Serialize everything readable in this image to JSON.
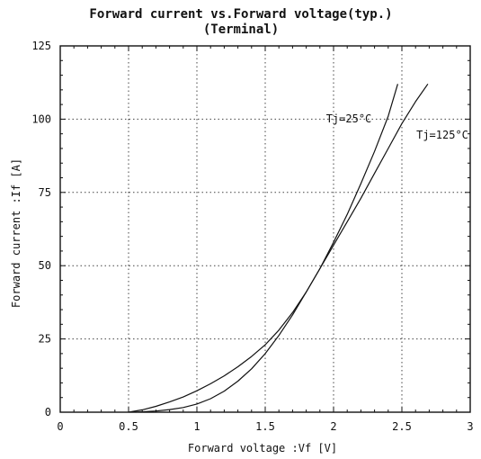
{
  "chart_data": {
    "type": "line",
    "title": "Forward current vs.Forward voltage(typ.)",
    "subtitle": "(Terminal)",
    "xlabel": "Forward voltage :Vf [V]",
    "ylabel": "Forward current :If [A]",
    "xlim": [
      0,
      3
    ],
    "ylim": [
      0,
      125
    ],
    "x_ticks": [
      0,
      0.5,
      1,
      1.5,
      2,
      2.5,
      3
    ],
    "y_ticks": [
      0,
      25,
      50,
      75,
      100,
      125
    ],
    "x_tick_labels": [
      "0",
      "0.5",
      "1",
      "1.5",
      "2",
      "2.5",
      "3"
    ],
    "y_tick_labels": [
      "0",
      "25",
      "50",
      "75",
      "100",
      "125"
    ],
    "grid": true,
    "series": [
      {
        "name": "Tj=25°C",
        "x": [
          0.5,
          0.6,
          0.7,
          0.8,
          0.9,
          1.0,
          1.1,
          1.2,
          1.3,
          1.4,
          1.5,
          1.6,
          1.7,
          1.8,
          1.9,
          2.0,
          2.1,
          2.2,
          2.3,
          2.4,
          2.47
        ],
        "y": [
          0,
          0.8,
          2.0,
          3.5,
          5.2,
          7.3,
          9.7,
          12.4,
          15.5,
          19.0,
          23.0,
          28.0,
          34.0,
          41.0,
          49.0,
          58.0,
          67.5,
          78.0,
          89.0,
          101.0,
          112.0
        ]
      },
      {
        "name": "Tj=125°C",
        "x": [
          0.55,
          0.7,
          0.8,
          0.9,
          1.0,
          1.1,
          1.2,
          1.3,
          1.4,
          1.5,
          1.6,
          1.7,
          1.8,
          1.9,
          2.0,
          2.1,
          2.2,
          2.3,
          2.4,
          2.5,
          2.6,
          2.69
        ],
        "y": [
          0,
          0.4,
          0.9,
          1.6,
          2.8,
          4.6,
          7.2,
          10.6,
          14.8,
          20.0,
          26.2,
          33.2,
          41.0,
          49.0,
          57.0,
          65.0,
          73.0,
          81.5,
          90.0,
          98.5,
          106.0,
          112.0
        ]
      }
    ],
    "annotations": [
      {
        "text": "Tj=25°C",
        "series": 0
      },
      {
        "text": "Tj=125°C",
        "series": 1
      }
    ]
  }
}
